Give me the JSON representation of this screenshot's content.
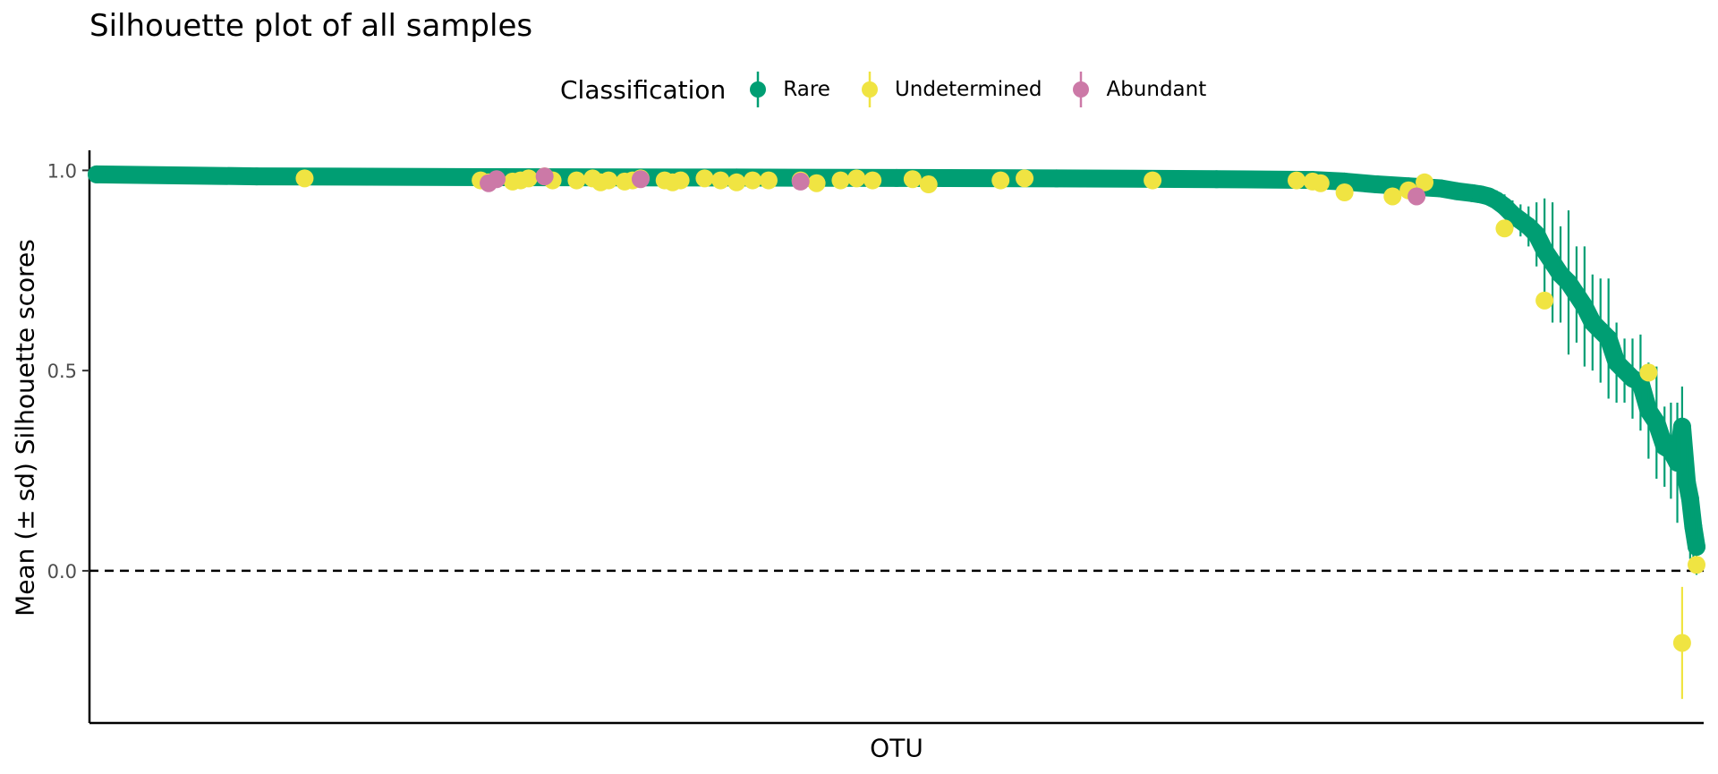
{
  "chart_data": {
    "type": "scatter",
    "title": "Silhouette plot of all samples",
    "xlabel": "OTU",
    "ylabel": "Mean (± sd) Silhouette scores",
    "ylim": [
      -0.38,
      1.05
    ],
    "yticks": [
      0.0,
      0.5,
      1.0
    ],
    "ytick_labels": [
      "0.0",
      "0.5",
      "1.0"
    ],
    "reference_line": {
      "y": 0.0,
      "style": "dashed"
    },
    "x_tick_labels_shown": false,
    "grid": false,
    "legend": {
      "title": "Classification",
      "position": "top",
      "entries": [
        {
          "label": "Rare",
          "color": "#009E73"
        },
        {
          "label": "Undetermined",
          "color": "#F0E442"
        },
        {
          "label": "Abundant",
          "color": "#CC79A7"
        }
      ]
    },
    "x": [
      0.0,
      0.1,
      0.25,
      0.4,
      0.5,
      0.6,
      0.7,
      0.76,
      0.78,
      0.8,
      0.82,
      0.84,
      0.85,
      0.86,
      0.865,
      0.87,
      0.875,
      0.88,
      0.885,
      0.89,
      0.895,
      0.9,
      0.905,
      0.91,
      0.915,
      0.92,
      0.925,
      0.93,
      0.935,
      0.94,
      0.945,
      0.95,
      0.955,
      0.96,
      0.965,
      0.97,
      0.975,
      0.98,
      0.984,
      0.988,
      0.991,
      0.994,
      0.996,
      0.998,
      1.0
    ],
    "series": [
      {
        "name": "Rare",
        "color": "#009E73",
        "mean": [
          0.99,
          0.985,
          0.983,
          0.982,
          0.981,
          0.98,
          0.978,
          0.976,
          0.972,
          0.965,
          0.96,
          0.955,
          0.948,
          0.943,
          0.94,
          0.935,
          0.925,
          0.91,
          0.89,
          0.875,
          0.86,
          0.84,
          0.8,
          0.77,
          0.74,
          0.72,
          0.69,
          0.66,
          0.62,
          0.6,
          0.58,
          0.52,
          0.5,
          0.48,
          0.47,
          0.4,
          0.37,
          0.31,
          0.3,
          0.27,
          0.36,
          0.22,
          0.18,
          0.11,
          0.06
        ],
        "sd": [
          0.002,
          0.002,
          0.002,
          0.003,
          0.003,
          0.003,
          0.003,
          0.004,
          0.005,
          0.006,
          0.008,
          0.01,
          0.012,
          0.015,
          0.018,
          0.02,
          0.025,
          0.03,
          0.035,
          0.04,
          0.05,
          0.08,
          0.13,
          0.15,
          0.12,
          0.18,
          0.12,
          0.15,
          0.12,
          0.13,
          0.15,
          0.1,
          0.08,
          0.1,
          0.12,
          0.12,
          0.14,
          0.1,
          0.12,
          0.15,
          0.1,
          0.1,
          0.15,
          0.1,
          0.07
        ]
      },
      {
        "name": "Undetermined",
        "color": "#F0E442",
        "x": [
          0.13,
          0.24,
          0.245,
          0.26,
          0.265,
          0.27,
          0.28,
          0.285,
          0.3,
          0.31,
          0.315,
          0.32,
          0.33,
          0.335,
          0.34,
          0.355,
          0.36,
          0.365,
          0.38,
          0.39,
          0.4,
          0.41,
          0.42,
          0.44,
          0.45,
          0.465,
          0.475,
          0.485,
          0.51,
          0.52,
          0.565,
          0.58,
          0.66,
          0.75,
          0.76,
          0.765,
          0.78,
          0.81,
          0.82,
          0.83,
          0.88,
          0.905,
          0.97,
          0.991,
          1.0
        ],
        "mean": [
          0.98,
          0.975,
          0.97,
          0.972,
          0.975,
          0.98,
          0.985,
          0.975,
          0.975,
          0.98,
          0.97,
          0.975,
          0.972,
          0.975,
          0.98,
          0.975,
          0.97,
          0.975,
          0.98,
          0.975,
          0.97,
          0.975,
          0.975,
          0.975,
          0.968,
          0.975,
          0.98,
          0.975,
          0.978,
          0.965,
          0.975,
          0.98,
          0.975,
          0.975,
          0.972,
          0.968,
          0.945,
          0.935,
          0.95,
          0.97,
          0.855,
          0.675,
          0.495,
          -0.18,
          0.015
        ],
        "sd": [
          0.002,
          0.003,
          0.003,
          0.003,
          0.003,
          0.003,
          0.003,
          0.003,
          0.003,
          0.003,
          0.003,
          0.003,
          0.003,
          0.003,
          0.003,
          0.003,
          0.003,
          0.003,
          0.003,
          0.003,
          0.003,
          0.003,
          0.003,
          0.003,
          0.003,
          0.003,
          0.003,
          0.003,
          0.003,
          0.003,
          0.003,
          0.003,
          0.003,
          0.003,
          0.003,
          0.003,
          0.005,
          0.005,
          0.005,
          0.005,
          0.01,
          0.01,
          0.01,
          0.14,
          0.02
        ]
      },
      {
        "name": "Abundant",
        "color": "#CC79A7",
        "x": [
          0.245,
          0.25,
          0.28,
          0.34,
          0.44,
          0.825
        ],
        "mean": [
          0.968,
          0.978,
          0.985,
          0.978,
          0.972,
          0.935
        ],
        "sd": [
          0.003,
          0.003,
          0.003,
          0.003,
          0.003,
          0.005
        ]
      }
    ]
  }
}
